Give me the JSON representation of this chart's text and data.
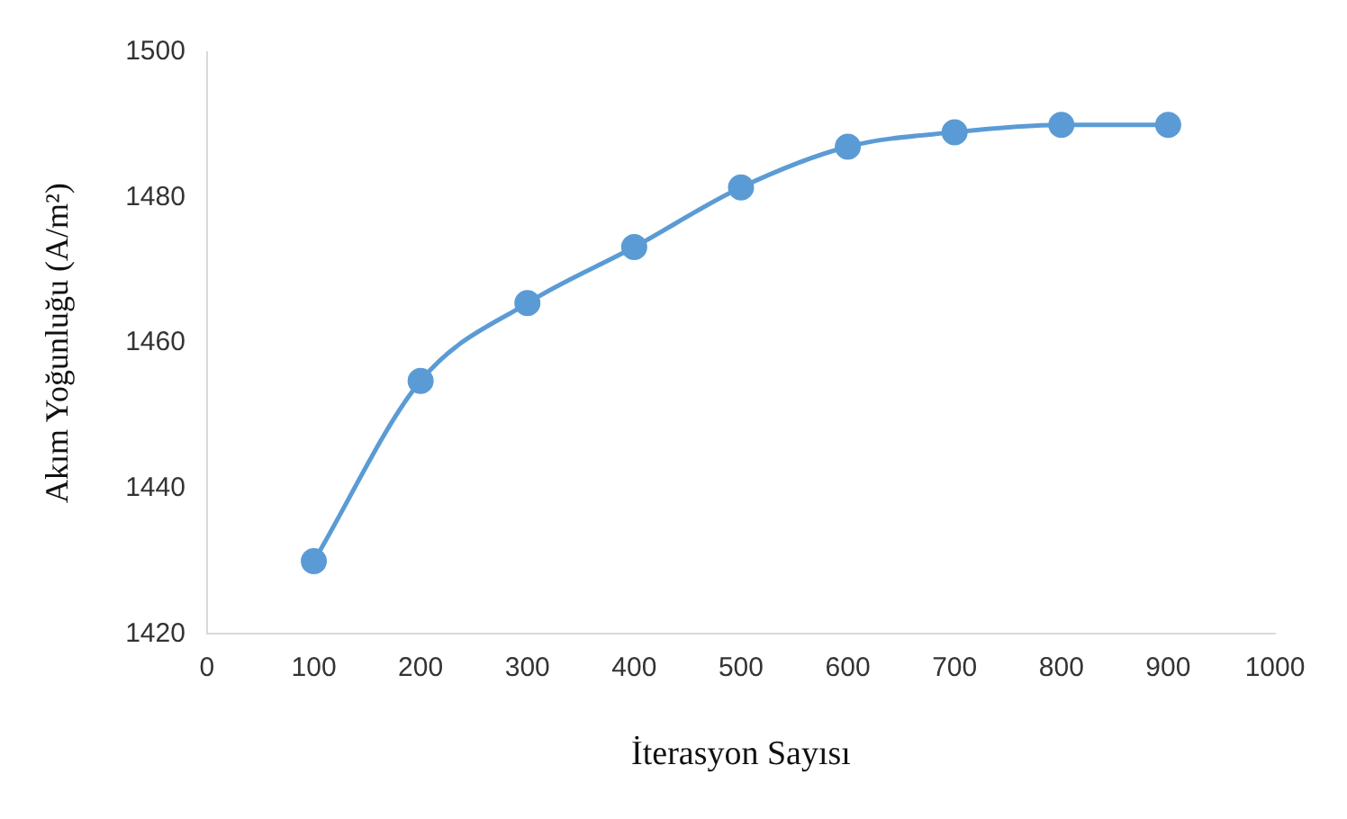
{
  "chart_data": {
    "type": "line",
    "xlabel": "İterasyon Sayısı",
    "ylabel": "Akım Yoğunluğu (A/m²)",
    "x": [
      100,
      200,
      300,
      400,
      500,
      600,
      700,
      800,
      900
    ],
    "series": [
      {
        "color": "#5b9bd5",
        "values": [
          1430,
          1454.8,
          1465.5,
          1473.2,
          1481.4,
          1487,
          1489,
          1490,
          1490
        ]
      }
    ],
    "xlim": [
      0,
      1000
    ],
    "xticks": [
      0,
      100,
      200,
      300,
      400,
      500,
      600,
      700,
      800,
      900,
      1000
    ],
    "ylim": [
      1420,
      1500
    ],
    "yticks": [
      1420,
      1440,
      1460,
      1480,
      1500
    ],
    "grid": false,
    "legend": false,
    "marker": "circle",
    "line_style": "solid"
  }
}
